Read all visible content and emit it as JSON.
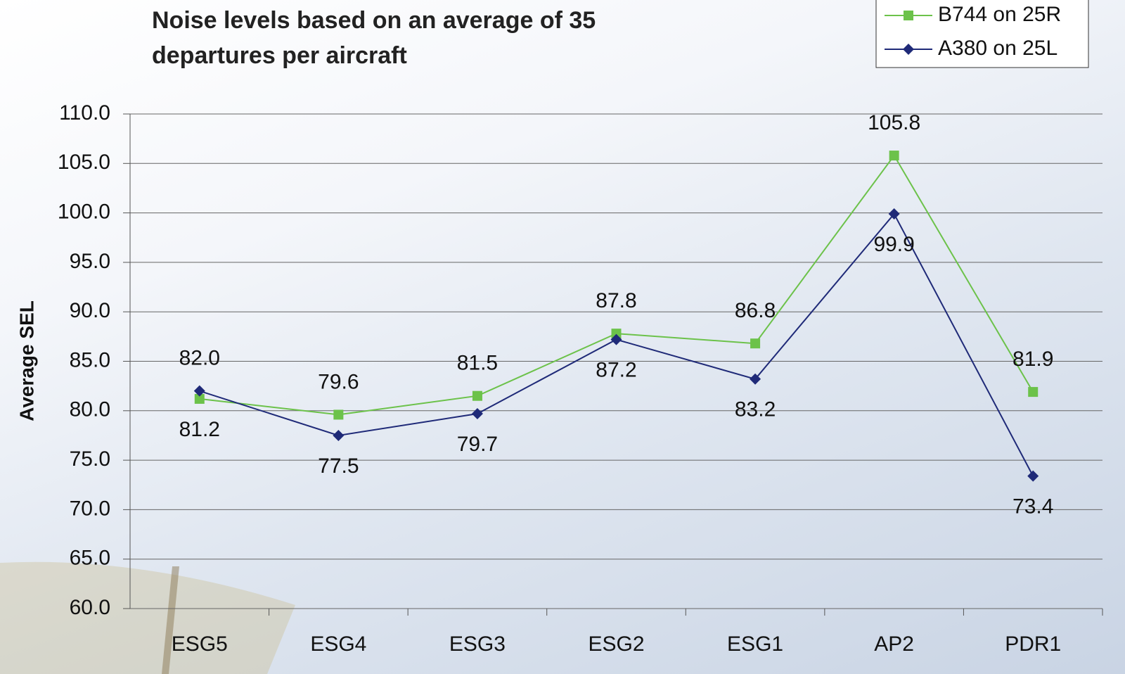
{
  "chart_data": {
    "type": "line",
    "title": "Noise levels based on an average of 35 departures per aircraft",
    "y_label": "Average SEL",
    "categories": [
      "ESG5",
      "ESG4",
      "ESG3",
      "ESG2",
      "ESG1",
      "AP2",
      "PDR1"
    ],
    "series": [
      {
        "name": "B744 on 25R",
        "color": "#6cc24a",
        "marker": "square",
        "values": [
          81.2,
          79.6,
          81.5,
          87.8,
          86.8,
          105.8,
          81.9
        ],
        "value_labels": [
          "81.2",
          "79.6",
          "81.5",
          "87.8",
          "86.8",
          "105.8",
          "81.9"
        ]
      },
      {
        "name": "A380 on 25L",
        "color": "#1f2a78",
        "marker": "diamond",
        "values": [
          82.0,
          77.5,
          79.7,
          87.2,
          83.2,
          99.9,
          73.4
        ],
        "value_labels": [
          "82.0",
          "77.5",
          "79.7",
          "87.2",
          "83.2",
          "99.9",
          "73.4"
        ]
      }
    ],
    "ylim": [
      60,
      110
    ],
    "yticks": [
      {
        "value": 60,
        "label": "60.0"
      },
      {
        "value": 65,
        "label": "65.0"
      },
      {
        "value": 70,
        "label": "70.0"
      },
      {
        "value": 75,
        "label": "75.0"
      },
      {
        "value": 80,
        "label": "80.0"
      },
      {
        "value": 85,
        "label": "85.0"
      },
      {
        "value": 90,
        "label": "90.0"
      },
      {
        "value": 95,
        "label": "95.0"
      },
      {
        "value": 100,
        "label": "100.0"
      },
      {
        "value": 105,
        "label": "105.0"
      },
      {
        "value": 110,
        "label": "110.0"
      }
    ],
    "grid": true,
    "legend": "top-right"
  }
}
